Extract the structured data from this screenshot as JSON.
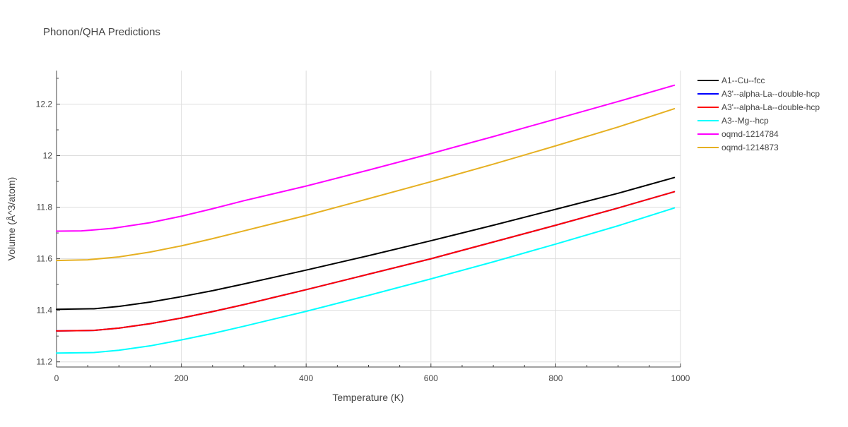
{
  "chart_data": {
    "type": "line",
    "title": "Phonon/QHA Predictions",
    "xlabel": "Temperature (K)",
    "ylabel": "Volume (Å^3/atom)",
    "xlim": [
      0,
      1000
    ],
    "ylim": [
      11.18,
      12.33
    ],
    "x_ticks": [
      0,
      200,
      400,
      600,
      800,
      1000
    ],
    "y_ticks": [
      11.2,
      11.4,
      11.6,
      11.8,
      12,
      12.2
    ],
    "x_tick_labels": [
      "0",
      "200",
      "400",
      "600",
      "800",
      "1000"
    ],
    "y_tick_labels": [
      "11.2",
      "11.4",
      "11.6",
      "11.8",
      "12",
      "12.2"
    ],
    "grid": true,
    "legend_position": "right",
    "series": [
      {
        "name": "A1--Cu--fcc",
        "color": "#000000",
        "x": [
          0,
          60,
          100,
          150,
          200,
          250,
          300,
          400,
          500,
          600,
          700,
          800,
          900,
          990
        ],
        "y": [
          11.404,
          11.406,
          11.415,
          11.432,
          11.453,
          11.476,
          11.502,
          11.556,
          11.612,
          11.67,
          11.73,
          11.792,
          11.854,
          11.915
        ]
      },
      {
        "name": "A3'--alpha-La--double-hcp",
        "color": "#0000ff",
        "x": [
          0,
          60,
          100,
          150,
          200,
          250,
          300,
          400,
          500,
          600,
          700,
          800,
          900,
          990
        ],
        "y": [
          11.32,
          11.322,
          11.331,
          11.348,
          11.37,
          11.395,
          11.422,
          11.48,
          11.54,
          11.6,
          11.665,
          11.73,
          11.797,
          11.86
        ]
      },
      {
        "name": "A3'--alpha-La--double-hcp",
        "color": "#ff0000",
        "x": [
          0,
          60,
          100,
          150,
          200,
          250,
          300,
          400,
          500,
          600,
          700,
          800,
          900,
          990
        ],
        "y": [
          11.32,
          11.322,
          11.331,
          11.348,
          11.37,
          11.395,
          11.422,
          11.48,
          11.54,
          11.6,
          11.665,
          11.73,
          11.797,
          11.86
        ]
      },
      {
        "name": "A3--Mg--hcp",
        "color": "#00ffff",
        "x": [
          0,
          60,
          100,
          150,
          200,
          250,
          300,
          400,
          500,
          600,
          700,
          800,
          900,
          990
        ],
        "y": [
          11.234,
          11.236,
          11.245,
          11.262,
          11.285,
          11.31,
          11.338,
          11.396,
          11.458,
          11.522,
          11.588,
          11.657,
          11.728,
          11.797
        ]
      },
      {
        "name": "oqmd-1214784",
        "color": "#ff00ff",
        "x": [
          0,
          40,
          90,
          150,
          200,
          250,
          300,
          400,
          500,
          600,
          700,
          800,
          900,
          990
        ],
        "y": [
          11.707,
          11.708,
          11.718,
          11.74,
          11.765,
          11.794,
          11.825,
          11.882,
          11.944,
          12.008,
          12.074,
          12.142,
          12.21,
          12.273
        ]
      },
      {
        "name": "oqmd-1214873",
        "color": "#e6b022",
        "x": [
          0,
          50,
          100,
          150,
          200,
          250,
          300,
          400,
          500,
          600,
          700,
          800,
          900,
          990
        ],
        "y": [
          11.593,
          11.596,
          11.607,
          11.626,
          11.65,
          11.678,
          11.708,
          11.768,
          11.833,
          11.899,
          11.967,
          12.038,
          12.111,
          12.182
        ]
      }
    ]
  }
}
